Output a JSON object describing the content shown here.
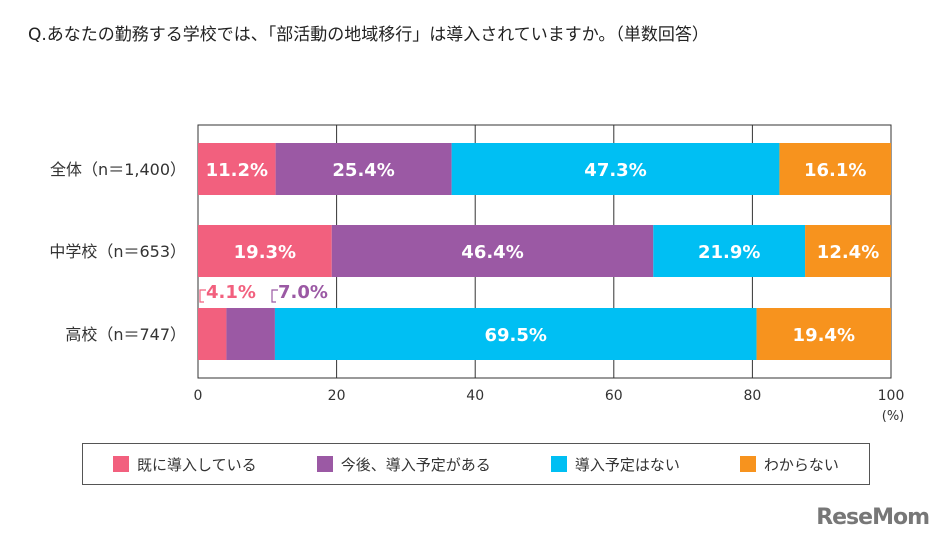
{
  "title": "Q.あなたの勤務する学校では、「部活動の地域移行」は導入されていますか。（単数回答）",
  "logo": "ReseMom",
  "chart_data": {
    "type": "bar",
    "orientation": "horizontal",
    "stacked": true,
    "categories": [
      "全体（n＝1,400）",
      "中学校（n＝653）",
      "高校（n＝747）"
    ],
    "series": [
      {
        "name": "既に導入している",
        "color": "#f2607e",
        "values": [
          11.2,
          19.3,
          4.1
        ],
        "labels": [
          "11.2%",
          "19.3%",
          "4.1%"
        ]
      },
      {
        "name": "今後、導入予定がある",
        "color": "#9b59a4",
        "values": [
          25.4,
          46.4,
          7.0
        ],
        "labels": [
          "25.4%",
          "46.4%",
          "7.0%"
        ]
      },
      {
        "name": "導入予定はない",
        "color": "#00bff3",
        "values": [
          47.3,
          21.9,
          69.5
        ],
        "labels": [
          "47.3%",
          "21.9%",
          "69.5%"
        ]
      },
      {
        "name": "わからない",
        "color": "#f7931e",
        "values": [
          16.1,
          12.4,
          19.4
        ],
        "labels": [
          "16.1%",
          "12.4%",
          "19.4%"
        ]
      }
    ],
    "xlim": [
      0,
      100
    ],
    "xticks": [
      "0",
      "20",
      "40",
      "60",
      "80",
      "100"
    ],
    "xunit": "(%)",
    "grid": true,
    "legend": "bottom"
  }
}
